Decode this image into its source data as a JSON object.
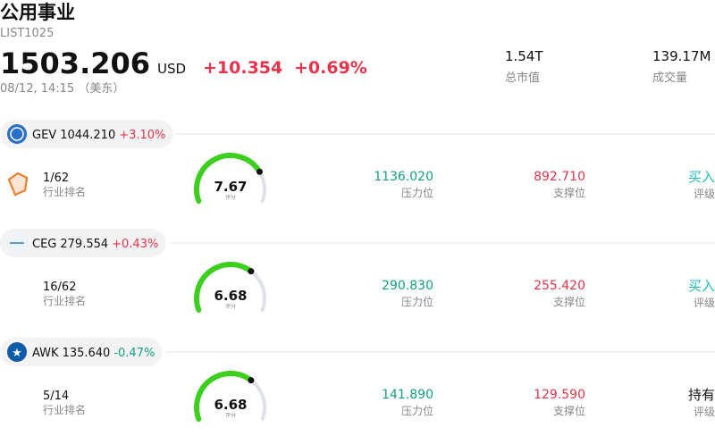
{
  "header": {
    "title": "公用事业",
    "code": "LIST1025",
    "price": "1503.206",
    "currency": "USD",
    "change": "+10.354",
    "change_pct": "+0.69%",
    "time": "08/12, 14:15 （美东）",
    "market_cap": "1.54T",
    "market_cap_label": "总市值",
    "volume": "139.17M",
    "volume_label": "成交量"
  },
  "stocks": [
    {
      "ticker": "GEV",
      "price": "1044.210",
      "change_pct": "+3.10%",
      "change_color": "#e8334a",
      "rank": "1/62",
      "rank_label": "行业排名",
      "score": 7.67,
      "score_label": "评分",
      "resistance": "1136.020",
      "resistance_label": "压力位",
      "support": "892.710",
      "support_label": "支撑位",
      "rating": "买入",
      "rating_color": "#1fbfb8",
      "rating_label": "评级"
    },
    {
      "ticker": "CEG",
      "price": "279.554",
      "change_pct": "+0.43%",
      "change_color": "#e8334a",
      "rank": "16/62",
      "rank_label": "行业排名",
      "score": 6.68,
      "score_label": "评分",
      "resistance": "290.830",
      "resistance_label": "压力位",
      "support": "255.420",
      "support_label": "支撑位",
      "rating": "买入",
      "rating_color": "#1fbfb8",
      "rating_label": "评级"
    },
    {
      "ticker": "AWK",
      "price": "135.640",
      "change_pct": "-0.47%",
      "change_color": "#14a085",
      "rank": "5/14",
      "rank_label": "行业排名",
      "score": 6.68,
      "score_label": "评分",
      "resistance": "141.890",
      "resistance_label": "压力位",
      "support": "129.590",
      "support_label": "支撑位",
      "rating": "持有",
      "rating_color": "#111111",
      "rating_label": "评级"
    }
  ]
}
